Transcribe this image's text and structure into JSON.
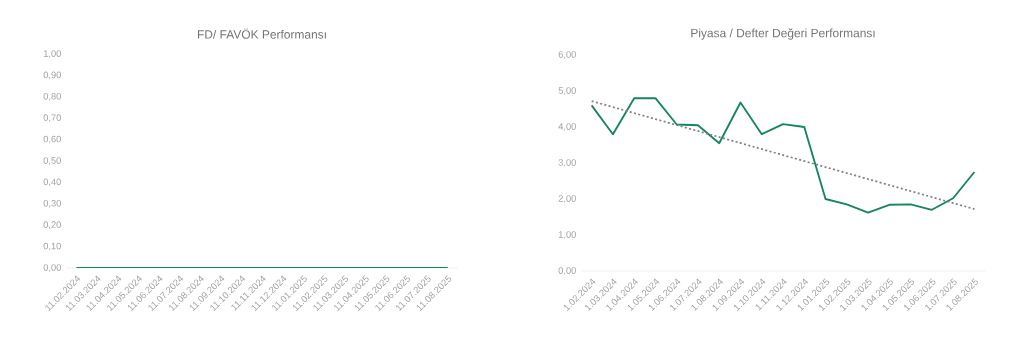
{
  "chart_data": [
    {
      "type": "line",
      "title": "FD/ FAVÖK Performansı",
      "categories": [
        "11.02.2024",
        "11.03.2024",
        "11.04.2024",
        "11.05.2024",
        "11.06.2024",
        "11.07.2024",
        "11.08.2024",
        "11.09.2024",
        "11.10.2024",
        "11.11.2024",
        "11.12.2024",
        "11.01.2025",
        "11.02.2025",
        "11.03.2025",
        "11.04.2025",
        "11.05.2025",
        "11.06.2025",
        "11.07.2025",
        "11.08.2025"
      ],
      "series": [
        {
          "color": "#16875c",
          "values": [
            0,
            0,
            0,
            0,
            0,
            0,
            0,
            0,
            0,
            0,
            0,
            0,
            0,
            0,
            0,
            0,
            0,
            0,
            0
          ]
        }
      ],
      "ylim": [
        0,
        1
      ],
      "yticks": [
        {
          "value": 0,
          "label": "0,00"
        },
        {
          "value": 0.1,
          "label": "0,10"
        },
        {
          "value": 0.2,
          "label": "0,20"
        },
        {
          "value": 0.3,
          "label": "0,30"
        },
        {
          "value": 0.4,
          "label": "0,40"
        },
        {
          "value": 0.5,
          "label": "0,50"
        },
        {
          "value": 0.6,
          "label": "0,60"
        },
        {
          "value": 0.7,
          "label": "0,70"
        },
        {
          "value": 0.8,
          "label": "0,80"
        },
        {
          "value": 0.9,
          "label": "0,90"
        },
        {
          "value": 1,
          "label": "1,00"
        }
      ]
    },
    {
      "type": "line",
      "title": "Piyasa / Defter Değeri Performansı",
      "categories": [
        "1.02.2024",
        "1.03.2024",
        "1.04.2024",
        "1.05.2024",
        "1.06.2024",
        "1.07.2024",
        "1.08.2024",
        "1.09.2024",
        "1.10.2024",
        "1.11.2024",
        "1.12.2024",
        "1.01.2025",
        "1.02.2025",
        "1.03.2025",
        "1.04.2025",
        "1.05.2025",
        "1.06.2025",
        "1.07.2025",
        "1.08.2025"
      ],
      "series": [
        {
          "color": "#16875c",
          "values": [
            4.6,
            3.8,
            4.8,
            4.8,
            4.07,
            4.05,
            3.55,
            4.68,
            3.8,
            4.08,
            4.0,
            2.0,
            1.85,
            1.62,
            1.84,
            1.85,
            1.7,
            2.02,
            2.75
          ]
        },
        {
          "color": "#808080",
          "line_style": "dotted",
          "values": [
            4.72,
            null,
            null,
            null,
            null,
            null,
            null,
            null,
            null,
            null,
            null,
            null,
            null,
            null,
            null,
            null,
            null,
            null,
            1.72
          ]
        }
      ],
      "ylim": [
        0,
        6
      ],
      "yticks": [
        {
          "value": 0,
          "label": "0,00"
        },
        {
          "value": 1,
          "label": "1,00"
        },
        {
          "value": 2,
          "label": "2,00"
        },
        {
          "value": 3,
          "label": "3,00"
        },
        {
          "value": 4,
          "label": "4,00"
        },
        {
          "value": 5,
          "label": "5,00"
        },
        {
          "value": 6,
          "label": "6,00"
        }
      ]
    }
  ]
}
